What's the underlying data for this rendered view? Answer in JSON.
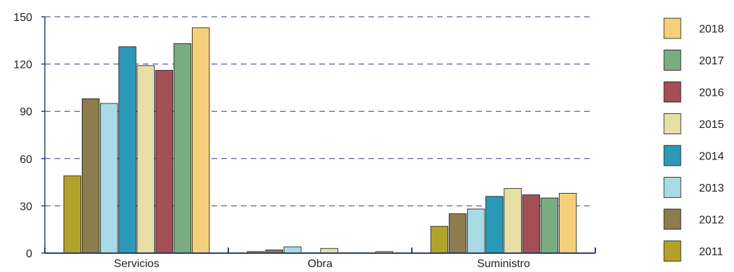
{
  "chart_data": {
    "type": "bar",
    "title": "",
    "xlabel": "",
    "ylabel": "",
    "ylim": [
      0,
      150
    ],
    "yticks": [
      0,
      30,
      60,
      90,
      120,
      150
    ],
    "grid": "horizontal-dashed",
    "legend_position": "right",
    "categories": [
      "Servicios",
      "Obra",
      "Suministro"
    ],
    "series": [
      {
        "name": "2011",
        "color": "#b3a22a",
        "values": [
          49,
          1,
          17
        ]
      },
      {
        "name": "2012",
        "color": "#8c7c4e",
        "values": [
          98,
          2,
          25
        ]
      },
      {
        "name": "2013",
        "color": "#a9dbe6",
        "values": [
          95,
          4,
          28
        ]
      },
      {
        "name": "2014",
        "color": "#2a9ab8",
        "values": [
          131,
          0.3,
          36
        ]
      },
      {
        "name": "2015",
        "color": "#e8dfa6",
        "values": [
          119,
          3,
          41
        ]
      },
      {
        "name": "2016",
        "color": "#a34f55",
        "values": [
          116,
          0.3,
          37
        ]
      },
      {
        "name": "2017",
        "color": "#7aac81",
        "values": [
          133,
          0.3,
          35
        ]
      },
      {
        "name": "2018",
        "color": "#f6cf7a",
        "values": [
          143,
          1,
          38
        ]
      }
    ],
    "axis_color": "#2b3b7a",
    "grid_color": "#2b3b7a"
  }
}
